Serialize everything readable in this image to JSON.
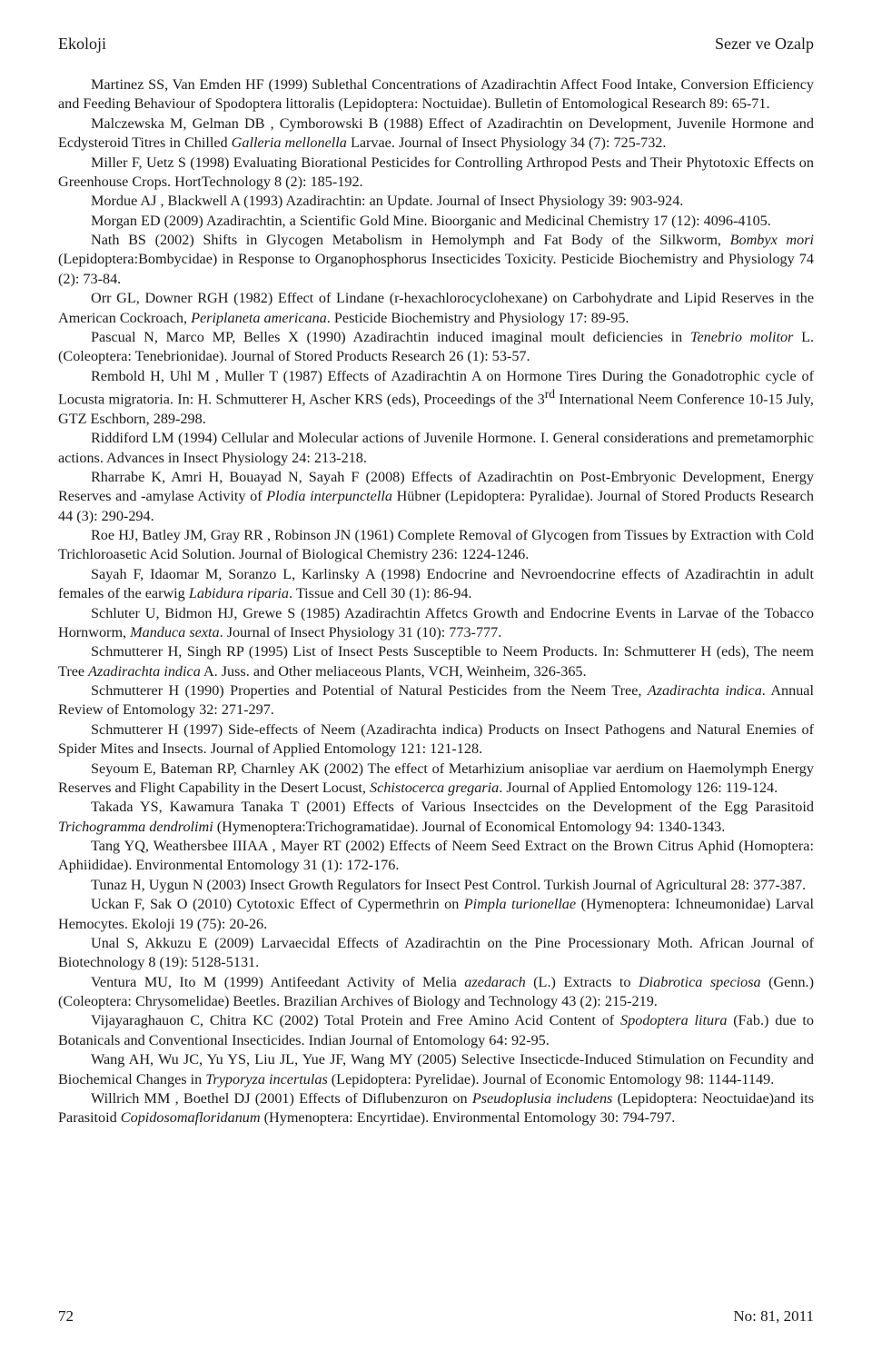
{
  "running_head": {
    "left": "Ekoloji",
    "right": "Sezer ve Ozalp"
  },
  "footer": {
    "page_number": "72",
    "issue": "No: 81, 2011"
  },
  "references": [
    "Martinez SS, Van Emden HF (1999) Sublethal Concentrations of Azadirachtin Affect Food Intake, Conversion Efficiency and Feeding Behaviour of Spodoptera littoralis (Lepidoptera: Noctuidae). Bulletin of Entomological Research 89: 65-71.",
    "Malczewska M, Gelman DB , Cymborowski B (1988) Effect of Azadirachtin on Development, Juvenile Hormone and Ecdysteroid Titres in Chilled <em>Galleria mellonella</em> Larvae. Journal of Insect Physiology 34 (7): 725-732.",
    "Miller F, Uetz S (1998) Evaluating Biorational Pesticides for Controlling Arthropod Pests and Their Phytotoxic Effects on Greenhouse Crops. HortTechnology 8 (2): 185-192.",
    "Mordue AJ , Blackwell A (1993) Azadirachtin: an Update. Journal of Insect Physiology 39: 903-924.",
    "Morgan ED (2009) Azadirachtin, a Scientific Gold Mine. Bioorganic and Medicinal Chemistry 17 (12): 4096-4105.",
    "Nath BS (2002) Shifts in Glycogen Metabolism in Hemolymph and Fat Body of the Silkworm, <em>Bombyx mori</em> (Lepidoptera:Bombycidae) in Response to Organophosphorus Insecticides Toxicity. Pesticide Biochemistry and Physiology 74 (2): 73-84.",
    "Orr GL, Downer RGH (1982) Effect of Lindane (r-hexachlorocyclohexane) on Carbohydrate and Lipid Reserves in the American Cockroach, <em>Periplaneta americana</em>. Pesticide Biochemistry and Physiology 17: 89-95.",
    "Pascual N, Marco MP, Belles X (1990) Azadirachtin induced imaginal moult deficiencies in <em>Tenebrio molitor</em> L. (Coleoptera: Tenebrionidae). Journal of Stored Products Research 26 (1): 53-57.",
    "Rembold H, Uhl M , Muller T (1987) Effects of Azadirachtin A on Hormone Tires During the Gonadotrophic cycle of Locusta migratoria. In: H. Schmutterer H, Ascher KRS (eds), Proceedings of the 3<sup>rd</sup> International Neem Conference 10-15 July, GTZ Eschborn, 289-298.",
    "Riddiford LM (1994) Cellular and Molecular actions of Juvenile Hormone. I. General considerations and premetamorphic actions. Advances in Insect Physiology 24: 213-218.",
    "Rharrabe K, Amri H, Bouayad N, Sayah F (2008) Effects of Azadirachtin on Post-Embryonic Development, Energy Reserves and  -amylase Activity of <em>Plodia interpunctella</em> Hübner (Lepidoptera: Pyralidae). Journal of Stored Products Research 44 (3): 290-294.",
    "Roe HJ, Batley JM, Gray RR , Robinson JN (1961) Complete Removal of Glycogen from Tissues by Extraction with Cold Trichloroasetic Acid Solution. Journal of Biological Chemistry 236: 1224-1246.",
    "Sayah F, Idaomar M, Soranzo L, Karlinsky A (1998) Endocrine and Nevroendocrine effects of Azadirachtin in adult females of the earwig <em>Labidura riparia</em>. Tissue and Cell 30 (1): 86-94.",
    "Schluter U, Bidmon HJ, Grewe S (1985) Azadirachtin Affetcs Growth and Endocrine Events in Larvae of the Tobacco Hornworm, <em>Manduca sexta</em>. Journal of Insect Physiology 31 (10): 773-777.",
    "Schmutterer H, Singh RP (1995) List of Insect Pests Susceptible to Neem Products. In: Schmutterer H (eds), The neem Tree <em>Azadirachta indica</em> A. Juss. and Other meliaceous Plants, VCH, Weinheim, 326-365.",
    "Schmutterer H (1990) Properties and Potential of Natural Pesticides from the Neem Tree, <em>Azadirachta indica</em>. Annual Review of Entomology 32: 271-297.",
    "Schmutterer H (1997) Side-effects of Neem (Azadirachta indica) Products on Insect Pathogens and Natural Enemies of Spider Mites and Insects. Journal of Applied Entomology 121: 121-128.",
    "Seyoum E, Bateman RP, Charnley AK (2002) The effect of Metarhizium anisopliae var aerdium on Haemolymph Energy Reserves and Flight Capability in the Desert Locust, <em>Schistocerca gregaria</em>. Journal of Applied Entomology 126: 119-124.",
    "Takada YS, Kawamura Tanaka T (2001) Effects of Various Insectcides on the Development of the Egg Parasitoid <em>Trichogramma dendrolimi</em> (Hymenoptera:Trichogramatidae). Journal of Economical Entomology 94: 1340-1343.",
    "Tang YQ, Weathersbee IIIAA , Mayer RT (2002) Effects of Neem Seed Extract on the Brown Citrus Aphid (Homoptera: Aphiididae). Environmental Entomology 31 (1): 172-176.",
    "Tunaz H, Uygun N (2003) Insect Growth Regulators for Insect Pest Control. Turkish Journal of Agricultural 28: 377-387.",
    "Uckan F, Sak O (2010) Cytotoxic Effect of Cypermethrin on <em>Pimpla turionellae</em> (Hymenoptera: Ichneumonidae) Larval Hemocytes. Ekoloji 19 (75): 20-26.",
    "Unal S, Akkuzu E (2009) Larvaecidal Effects of Azadirachtin on the Pine Processionary Moth. African Journal of Biotechnology 8 (19): 5128-5131.",
    "Ventura MU, Ito M (1999) Antifeedant Activity of Melia <em>azedarach</em> (L.)  Extracts to <em>Diabrotica speciosa</em> (Genn.) (Coleoptera: Chrysomelidae) Beetles. Brazilian Archives of Biology and Technology 43 (2): 215-219.",
    "Vijayaraghauon C, Chitra KC (2002) Total Protein and Free Amino Acid Content of <em>Spodoptera litura</em> (Fab.) due to Botanicals and Conventional Insecticides. Indian Journal of Entomology 64: 92-95.",
    "Wang AH, Wu JC, Yu YS, Liu JL, Yue JF, Wang MY (2005) Selective Insecticde-Induced Stimulation on Fecundity and Biochemical Changes in <em>Tryporyza incertulas</em> (Lepidoptera: Pyrelidae). Journal of Economic Entomology 98: 1144-1149.",
    "Willrich MM , Boethel DJ (2001) Effects of Diflubenzuron on <em>Pseudoplusia includens</em> (Lepidoptera: Neoctuidae)and its Parasitoid <em>Copidosomafloridanum</em> (Hymenoptera: Encyrtidae). Environmental Entomology 30: 794-797."
  ]
}
